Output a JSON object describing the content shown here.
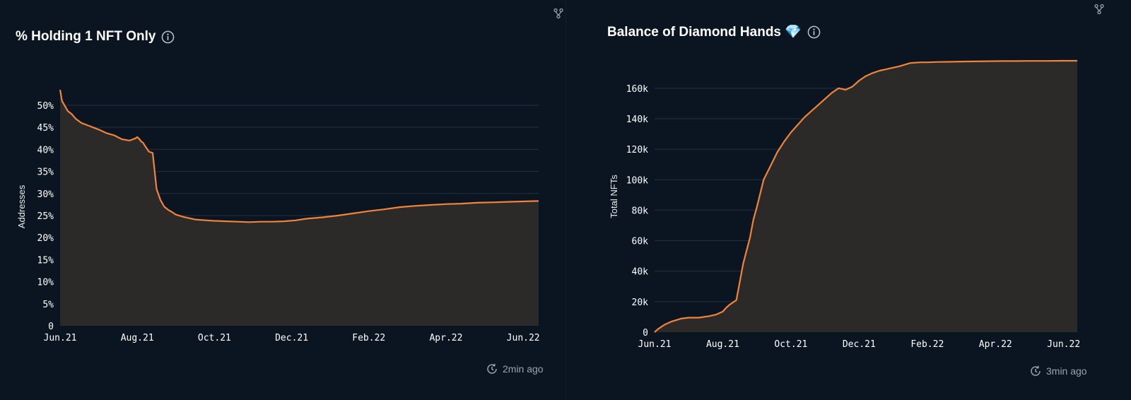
{
  "panels": [
    {
      "title": "% Holding 1 NFT Only",
      "updated": "2min ago"
    },
    {
      "title": "Balance of Diamond Hands 💎",
      "updated": "3min ago"
    }
  ],
  "colors": {
    "line": "#f0843a",
    "area": "#2b2a28",
    "grid": "#223041",
    "background": "#0b1522"
  },
  "chart_data": [
    {
      "type": "area",
      "title": "% Holding 1 NFT Only",
      "xlabel": "",
      "ylabel": "Addresses",
      "x_ticks": [
        "Jun.21",
        "Aug.21",
        "Oct.21",
        "Dec.21",
        "Feb.22",
        "Apr.22",
        "Jun.22"
      ],
      "y_ticks": [
        "0",
        "5%",
        "10%",
        "15%",
        "20%",
        "25%",
        "30%",
        "35%",
        "40%",
        "45%",
        "50%"
      ],
      "ylim": [
        0,
        54
      ],
      "grid": true,
      "x": [
        0,
        0.05,
        0.1,
        0.2,
        0.3,
        0.4,
        0.55,
        0.7,
        0.85,
        1.0,
        1.2,
        1.4,
        1.6,
        1.8,
        1.95,
        2.0,
        2.05,
        2.1,
        2.15,
        2.2,
        2.3,
        2.4,
        2.5,
        2.6,
        2.7,
        2.8,
        2.9,
        3.0,
        3.2,
        3.5,
        3.8,
        4.0,
        4.3,
        4.6,
        4.9,
        5.2,
        5.5,
        5.8,
        6.1,
        6.4,
        6.8,
        7.2,
        7.6,
        8.0,
        8.4,
        8.8,
        9.2,
        9.6,
        10.0,
        10.4,
        10.8,
        11.2,
        11.6,
        12.0,
        12.4
      ],
      "values": [
        53.5,
        51,
        50.2,
        48.7,
        48,
        47,
        46,
        45.5,
        45,
        44.5,
        43.7,
        43.2,
        42.3,
        42,
        42.5,
        42.8,
        42.4,
        41.8,
        41.5,
        40.8,
        39.5,
        39.2,
        31,
        28.5,
        27,
        26.3,
        25.8,
        25.2,
        24.7,
        24.1,
        23.9,
        23.8,
        23.7,
        23.6,
        23.5,
        23.6,
        23.6,
        23.7,
        23.9,
        24.3,
        24.6,
        25,
        25.5,
        26,
        26.4,
        26.9,
        27.2,
        27.4,
        27.6,
        27.7,
        27.9,
        28,
        28.1,
        28.2,
        28.3
      ]
    },
    {
      "type": "area",
      "title": "Balance of Diamond Hands 💎",
      "xlabel": "",
      "ylabel": "Total NFTs",
      "x_ticks": [
        "Jun.21",
        "Aug.21",
        "Oct.21",
        "Dec.21",
        "Feb.22",
        "Apr.22",
        "Jun.22"
      ],
      "y_ticks": [
        "0",
        "20k",
        "40k",
        "60k",
        "80k",
        "100k",
        "120k",
        "140k",
        "160k"
      ],
      "ylim": [
        0,
        178000
      ],
      "grid": true,
      "x": [
        0,
        0.1,
        0.3,
        0.5,
        0.8,
        1.0,
        1.3,
        1.6,
        1.8,
        2.0,
        2.1,
        2.2,
        2.4,
        2.6,
        2.8,
        2.85,
        2.9,
        3.0,
        3.2,
        3.4,
        3.6,
        3.8,
        4.0,
        4.2,
        4.4,
        4.6,
        4.8,
        5.0,
        5.2,
        5.4,
        5.6,
        5.8,
        6.0,
        6.2,
        6.4,
        6.6,
        6.8,
        7.0,
        7.2,
        7.5,
        7.8,
        8.0,
        8.3,
        8.6,
        9.0,
        9.4,
        9.8,
        10.2,
        10.6,
        11.0,
        11.5,
        12.0,
        12.4
      ],
      "values": [
        0,
        2000,
        5000,
        7000,
        9000,
        9500,
        9500,
        10500,
        11500,
        13500,
        16000,
        18000,
        21000,
        45000,
        62000,
        68000,
        74000,
        82000,
        100000,
        109000,
        118000,
        125000,
        131000,
        136000,
        141000,
        145000,
        149000,
        153000,
        157000,
        160000,
        159000,
        161000,
        165000,
        168000,
        170000,
        171500,
        172500,
        173500,
        174500,
        176500,
        177000,
        177000,
        177200,
        177300,
        177500,
        177600,
        177700,
        177800,
        177800,
        177900,
        177900,
        178000,
        178000
      ]
    }
  ]
}
